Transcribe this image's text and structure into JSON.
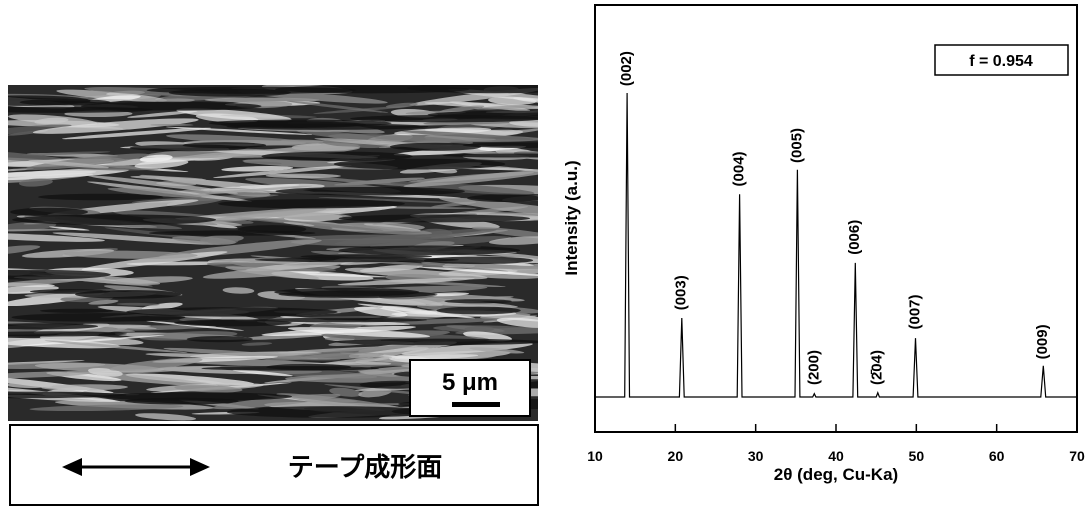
{
  "image_panel": {
    "scale_bar": "5 μm",
    "caption": "テープ成形面"
  },
  "chart_data": {
    "type": "line",
    "xlabel": "2θ (deg, Cu-Ka)",
    "ylabel": "Intensity (a.u.)",
    "annotation": "f = 0.954",
    "xlim": [
      10,
      70
    ],
    "xticks": [
      10,
      20,
      30,
      40,
      50,
      60,
      70
    ],
    "ylim": [
      0,
      100
    ],
    "color": "#000000",
    "x": [
      10,
      13.7,
      14.0,
      14.3,
      20.5,
      20.8,
      21.1,
      27.7,
      28.0,
      28.3,
      34.9,
      35.2,
      35.5,
      37.1,
      37.3,
      37.5,
      42.1,
      42.4,
      42.7,
      45.0,
      45.2,
      45.4,
      49.6,
      49.9,
      50.2,
      65.5,
      65.8,
      66.1,
      70
    ],
    "values": [
      8.2,
      8.2,
      79.4,
      8.2,
      8.2,
      26.7,
      8.2,
      8.2,
      55.7,
      8.2,
      8.2,
      61.4,
      8.2,
      8.2,
      9.0,
      8.2,
      8.2,
      39.6,
      8.2,
      8.2,
      9.2,
      8.2,
      8.2,
      22.0,
      8.2,
      8.2,
      15.5,
      8.2,
      8.2
    ],
    "peak_labels": [
      {
        "text": "(002)",
        "x": 14.0,
        "y": 81
      },
      {
        "text": "(003)",
        "x": 20.8,
        "y": 28.5
      },
      {
        "text": "(004)",
        "x": 28.0,
        "y": 57.5
      },
      {
        "text": "(005)",
        "x": 35.2,
        "y": 63
      },
      {
        "text": "(200)",
        "x": 37.3,
        "y": 11
      },
      {
        "text": "(006)",
        "x": 42.4,
        "y": 41.5
      },
      {
        "text": "(2̄04)",
        "x": 45.2,
        "y": 11
      },
      {
        "text": "(007)",
        "x": 49.9,
        "y": 24
      },
      {
        "text": "(009)",
        "x": 65.8,
        "y": 17
      }
    ]
  }
}
